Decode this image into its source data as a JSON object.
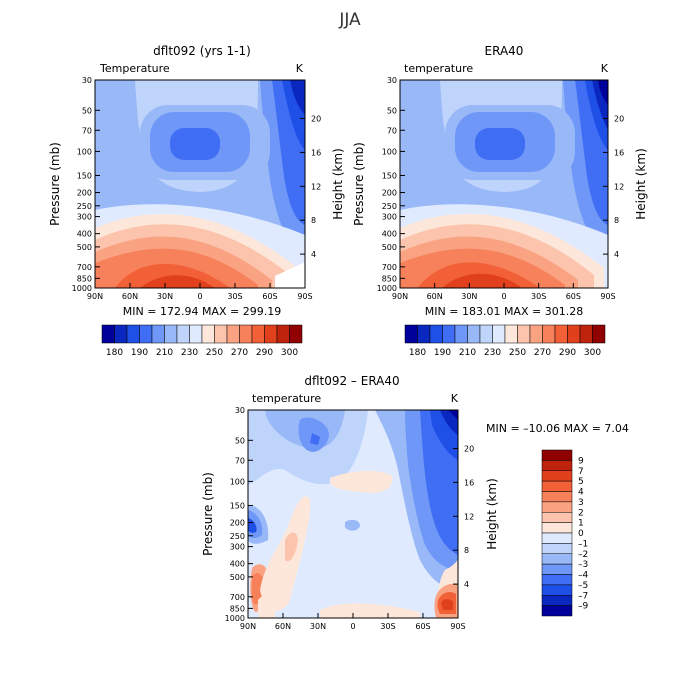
{
  "page_title": "JJA",
  "panels": [
    {
      "title": "dflt092 (yrs 1-1)",
      "field": "Temperature",
      "units": "K",
      "stats": "MIN = 172.94   MAX = 299.19",
      "ylabel_left": "Pressure (mb)",
      "ylabel_right": "Height (km)",
      "pressure_ticks": [
        "30",
        "50",
        "70",
        "100",
        "150",
        "200",
        "250",
        "300",
        "400",
        "500",
        "700",
        "850",
        "1000"
      ],
      "height_ticks": [
        "20",
        "16",
        "12",
        "8",
        "4"
      ],
      "lat_ticks": [
        "90N",
        "60N",
        "30N",
        "0",
        "30S",
        "60S",
        "90S"
      ],
      "colorbar": {
        "labels": [
          "180",
          "190",
          "210",
          "230",
          "250",
          "270",
          "290",
          "300"
        ],
        "colors": [
          "#00009a",
          "#0a28c0",
          "#1e4fe6",
          "#3f6ef5",
          "#6e97f7",
          "#99b8f8",
          "#bfd4fb",
          "#dfeaff",
          "#fde7da",
          "#fcc4ad",
          "#faa382",
          "#f7815b",
          "#f26037",
          "#e0401c",
          "#c0230c",
          "#900000"
        ]
      }
    },
    {
      "title": "ERA40",
      "field": "temperature",
      "units": "K",
      "stats": "MIN = 183.01   MAX = 301.28",
      "ylabel_left": "Pressure (mb)",
      "ylabel_right": "Height (km)",
      "pressure_ticks": [
        "30",
        "50",
        "70",
        "100",
        "150",
        "200",
        "250",
        "300",
        "400",
        "500",
        "700",
        "850",
        "1000"
      ],
      "height_ticks": [
        "20",
        "16",
        "12",
        "8",
        "4"
      ],
      "lat_ticks": [
        "90N",
        "60N",
        "30N",
        "0",
        "30S",
        "60S",
        "90S"
      ],
      "colorbar": {
        "labels": [
          "180",
          "190",
          "210",
          "230",
          "250",
          "270",
          "290",
          "300"
        ],
        "colors": [
          "#00009a",
          "#0a28c0",
          "#1e4fe6",
          "#3f6ef5",
          "#6e97f7",
          "#99b8f8",
          "#bfd4fb",
          "#dfeaff",
          "#fde7da",
          "#fcc4ad",
          "#faa382",
          "#f7815b",
          "#f26037",
          "#e0401c",
          "#c0230c",
          "#900000"
        ]
      }
    },
    {
      "title": "dflt092 – ERA40",
      "field": "temperature",
      "units": "K",
      "stats": "MIN = –10.06   MAX =    7.04",
      "ylabel_left": "Pressure (mb)",
      "ylabel_right": "Height (km)",
      "pressure_ticks": [
        "30",
        "50",
        "70",
        "100",
        "150",
        "200",
        "250",
        "300",
        "400",
        "500",
        "700",
        "850",
        "1000"
      ],
      "height_ticks": [
        "20",
        "16",
        "12",
        "8",
        "4"
      ],
      "lat_ticks": [
        "90N",
        "60N",
        "30N",
        "0",
        "30S",
        "60S",
        "90S"
      ],
      "colorbar": {
        "labels": [
          "9",
          "7",
          "5",
          "4",
          "3",
          "2",
          "1",
          "0",
          "–1",
          "–2",
          "–3",
          "–4",
          "–5",
          "–7",
          "–9"
        ],
        "colors": [
          "#900000",
          "#c0230c",
          "#e0401c",
          "#f26037",
          "#f7815b",
          "#faa382",
          "#fcc4ad",
          "#fde7da",
          "#dfeaff",
          "#bfd4fb",
          "#99b8f8",
          "#6e97f7",
          "#3f6ef5",
          "#1e4fe6",
          "#0a28c0",
          "#00009a"
        ]
      }
    }
  ],
  "chart_data": [
    {
      "type": "heatmap",
      "title": "dflt092 (yrs 1-1)",
      "field": "Temperature",
      "units": "K",
      "x": [
        "90N",
        "60N",
        "30N",
        "0",
        "30S",
        "60S",
        "90S"
      ],
      "y": [
        30,
        50,
        70,
        100,
        150,
        200,
        250,
        300,
        400,
        500,
        700,
        850,
        1000
      ],
      "xlabel": "",
      "ylabel": "Pressure (mb)",
      "ylabel_right": "Height (km)",
      "ylim": [
        1000,
        30
      ],
      "log_y": true,
      "min": 172.94,
      "max": 299.19,
      "levels": [
        180,
        190,
        210,
        230,
        250,
        270,
        290,
        300
      ]
    },
    {
      "type": "heatmap",
      "title": "ERA40",
      "field": "temperature",
      "units": "K",
      "x": [
        "90N",
        "60N",
        "30N",
        "0",
        "30S",
        "60S",
        "90S"
      ],
      "y": [
        30,
        50,
        70,
        100,
        150,
        200,
        250,
        300,
        400,
        500,
        700,
        850,
        1000
      ],
      "xlabel": "",
      "ylabel": "Pressure (mb)",
      "ylabel_right": "Height (km)",
      "ylim": [
        1000,
        30
      ],
      "log_y": true,
      "min": 183.01,
      "max": 301.28,
      "levels": [
        180,
        190,
        210,
        230,
        250,
        270,
        290,
        300
      ]
    },
    {
      "type": "heatmap",
      "title": "dflt092 – ERA40",
      "field": "temperature",
      "units": "K",
      "x": [
        "90N",
        "60N",
        "30N",
        "0",
        "30S",
        "60S",
        "90S"
      ],
      "y": [
        30,
        50,
        70,
        100,
        150,
        200,
        250,
        300,
        400,
        500,
        700,
        850,
        1000
      ],
      "xlabel": "",
      "ylabel": "Pressure (mb)",
      "ylabel_right": "Height (km)",
      "ylim": [
        1000,
        30
      ],
      "log_y": true,
      "min": -10.06,
      "max": 7.04,
      "levels": [
        9,
        7,
        5,
        4,
        3,
        2,
        1,
        0,
        -1,
        -2,
        -3,
        -4,
        -5,
        -7,
        -9
      ]
    }
  ]
}
